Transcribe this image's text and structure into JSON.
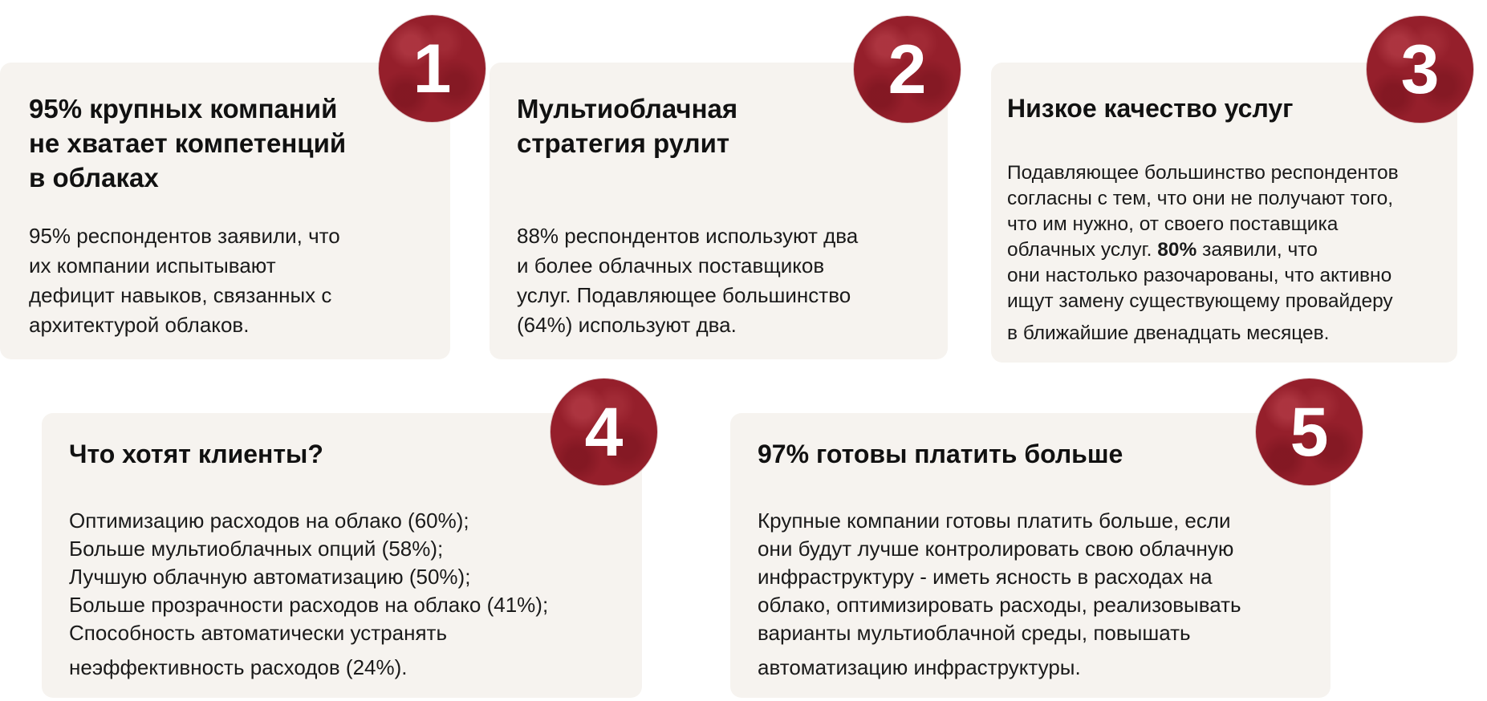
{
  "cards": [
    {
      "number": "1",
      "title_lines": [
        "95% крупных компаний",
        "не хватает компетенций",
        "в облаках"
      ],
      "body_lines": [
        "95% респондентов заявили, что",
        "их компании испытывают",
        "дефицит навыков, связанных с",
        "архитектурой облаков."
      ]
    },
    {
      "number": "2",
      "title_lines": [
        "Мультиоблачная",
        "стратегия рулит"
      ],
      "body_lines": [
        "88% респондентов используют два",
        "и более облачных поставщиков",
        "услуг. Подавляющее большинство",
        "(64%) используют два."
      ]
    },
    {
      "number": "3",
      "title_lines": [
        "Низкое качество услуг"
      ],
      "body_lines": [
        "Подавляющее большинство респондентов",
        "согласны с тем, что они не получают того,",
        "что им нужно, от своего поставщика",
        "облачных услуг.",
        "они настолько разочарованы, что активно",
        "ищут замену существующему провайдеру",
        "в ближайшие двенадцать месяцев."
      ],
      "body_bold": "80%",
      "body_after_bold": "заявили, что"
    },
    {
      "number": "4",
      "title_lines": [
        "Что хотят клиенты?"
      ],
      "body_lines": [
        "Оптимизацию расходов на облако (60%);",
        "Больше мультиоблачных опций (58%);",
        "Лучшую облачную автоматизацию (50%);",
        "Больше прозрачности расходов на облако (41%);",
        "Способность автоматически устранять",
        "неэффективность расходов (24%)."
      ]
    },
    {
      "number": "5",
      "title_lines": [
        "97% готовы платить больше"
      ],
      "body_lines": [
        "Крупные компании готовы платить больше, если",
        "они будут лучше контролировать свою облачную",
        "инфраструктуру - иметь ясность в расходах на",
        "облако, оптимизировать расходы, реализовывать",
        "варианты мультиоблачной среды, повышать",
        "автоматизацию инфраструктуры."
      ]
    }
  ],
  "colors": {
    "card_background": "#f6f3ef",
    "badge": "#951f2b",
    "badge_text": "#ffffff",
    "text": "#111111"
  }
}
